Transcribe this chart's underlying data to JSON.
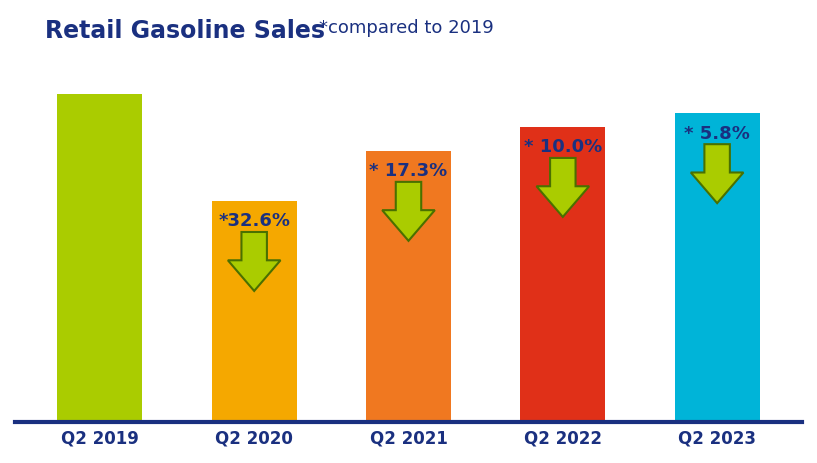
{
  "categories": [
    "Q2 2019",
    "Q2 2020",
    "Q2 2021",
    "Q2 2022",
    "Q2 2023"
  ],
  "values": [
    100,
    67.4,
    82.7,
    90.0,
    94.2
  ],
  "bar_colors": [
    "#aacc00",
    "#f5a800",
    "#f07820",
    "#e03018",
    "#00b4d8"
  ],
  "title_bold": "Retail Gasoline Sales",
  "title_light": "*compared to 2019",
  "title_color": "#1a3080",
  "xlabel_color": "#1a3080",
  "labels": [
    "",
    "*32.6%",
    "* 17.3%",
    "* 10.0%",
    "* 5.8%"
  ],
  "label_color": "#1a3080",
  "arrow_fill_color": "#aacc00",
  "arrow_edge_color": "#4a7000",
  "background_color": "#ffffff",
  "grid_color": "#ccccdd",
  "axis_line_color": "#1a3080",
  "ylim": [
    0,
    110
  ],
  "title_bold_fontsize": 17,
  "title_light_fontsize": 13,
  "label_fontsize": 13,
  "xtick_fontsize": 12
}
